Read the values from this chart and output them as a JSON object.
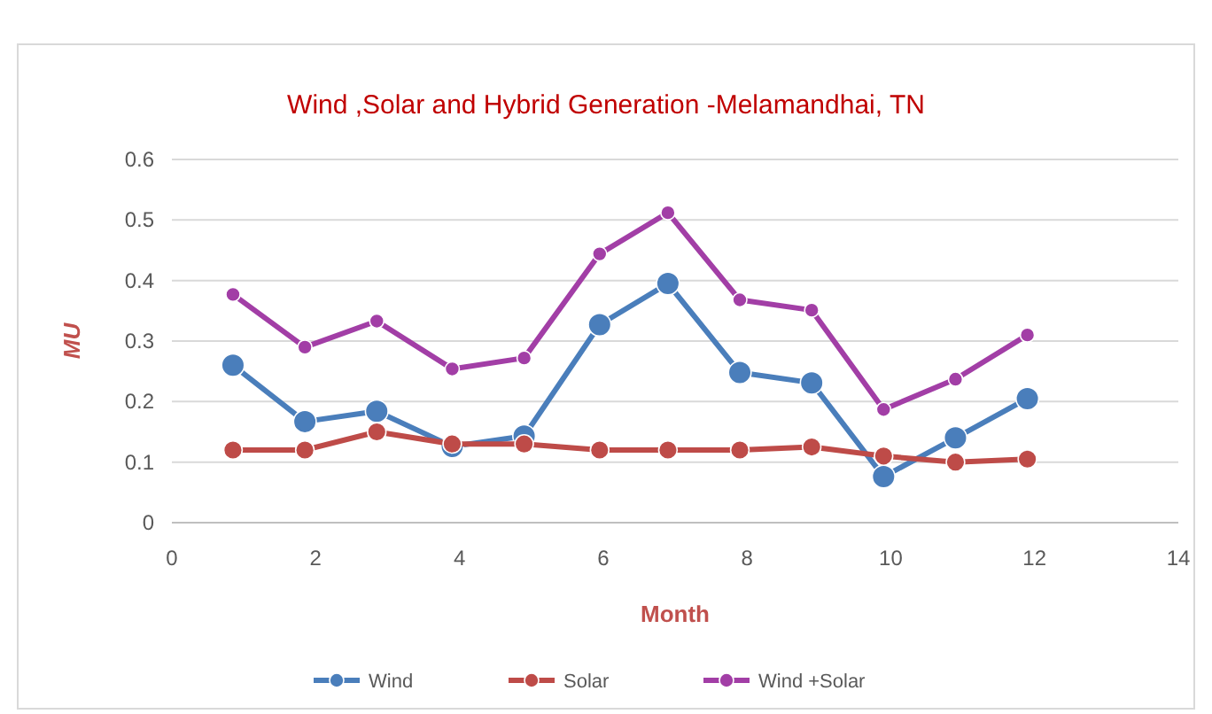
{
  "chart_data": {
    "type": "line",
    "title": "Wind ,Solar and Hybrid Generation -Melamandhai, TN",
    "xlabel": "Month",
    "ylabel": "MU",
    "xlim": [
      0,
      14
    ],
    "xticks": [
      0,
      2,
      4,
      6,
      8,
      10,
      12,
      14
    ],
    "ylim": [
      0,
      0.6
    ],
    "yticks": [
      0,
      0.1,
      0.2,
      0.3,
      0.4,
      0.5,
      0.6
    ],
    "x": [
      0.85,
      1.85,
      2.85,
      3.9,
      4.9,
      5.95,
      6.9,
      7.9,
      8.9,
      9.9,
      10.9,
      11.9
    ],
    "series": [
      {
        "name": "Wind",
        "color": "#4a7ebb",
        "values": [
          0.26,
          0.167,
          0.184,
          0.126,
          0.143,
          0.327,
          0.395,
          0.248,
          0.231,
          0.076,
          0.14,
          0.205
        ]
      },
      {
        "name": "Solar",
        "color": "#be4b48",
        "values": [
          0.12,
          0.12,
          0.15,
          0.13,
          0.13,
          0.12,
          0.12,
          0.12,
          0.125,
          0.11,
          0.1,
          0.105
        ]
      },
      {
        "name": "Wind +Solar",
        "color": "#a23ea6",
        "values": [
          0.377,
          0.29,
          0.333,
          0.254,
          0.272,
          0.444,
          0.512,
          0.368,
          0.351,
          0.187,
          0.237,
          0.31
        ]
      }
    ],
    "grid": "y",
    "legend": "bottom",
    "marker": "circle",
    "line_style": "solid"
  }
}
